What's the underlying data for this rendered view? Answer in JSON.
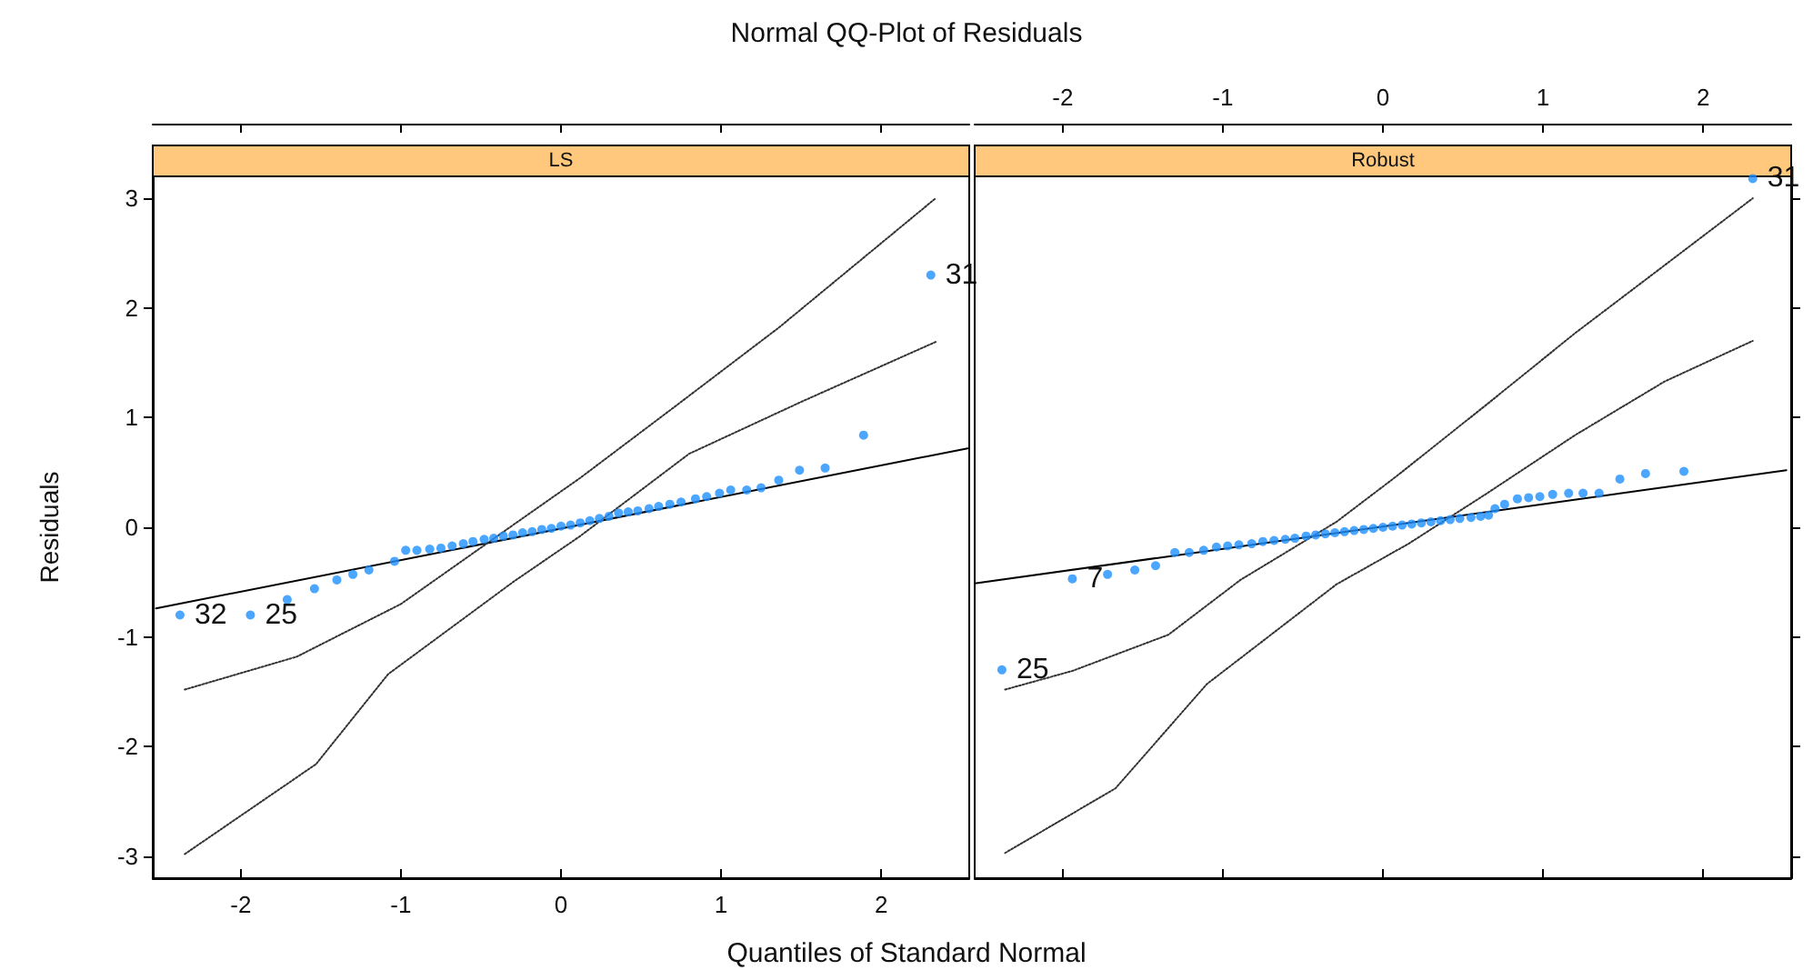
{
  "chart_data": [
    {
      "type": "scatter",
      "title": "Normal QQ-Plot of Residuals",
      "subtitle": "LS",
      "xlabel": "Quantiles of Standard Normal",
      "ylabel": "Residuals",
      "xlim": [
        -2.55,
        2.55
      ],
      "xticks": [
        -2,
        -1,
        0,
        1,
        2
      ],
      "ylim": [
        -3.2,
        3.2
      ],
      "yticks": [
        -3,
        -2,
        -1,
        0,
        1,
        2,
        3
      ],
      "marker": "circle",
      "series": [
        {
          "color": "#1e90ff",
          "x": [
            -2.38,
            -1.94,
            -1.71,
            -1.54,
            -1.4,
            -1.3,
            -1.2,
            -1.04,
            -0.97,
            -0.9,
            -0.82,
            -0.75,
            -0.68,
            -0.61,
            -0.55,
            -0.48,
            -0.42,
            -0.36,
            -0.3,
            -0.24,
            -0.18,
            -0.12,
            -0.06,
            0,
            0.06,
            0.12,
            0.18,
            0.24,
            0.3,
            0.36,
            0.42,
            0.48,
            0.55,
            0.61,
            0.68,
            0.75,
            0.84,
            0.91,
            0.99,
            1.06,
            1.16,
            1.25,
            1.36,
            1.49,
            1.65,
            1.89,
            2.31
          ],
          "values": [
            -0.8,
            -0.8,
            -0.66,
            -0.56,
            -0.48,
            -0.43,
            -0.39,
            -0.31,
            -0.21,
            -0.21,
            -0.2,
            -0.19,
            -0.17,
            -0.15,
            -0.13,
            -0.11,
            -0.1,
            -0.08,
            -0.07,
            -0.05,
            -0.04,
            -0.02,
            -0.01,
            0.01,
            0.02,
            0.04,
            0.06,
            0.08,
            0.1,
            0.13,
            0.14,
            0.15,
            0.17,
            0.19,
            0.21,
            0.23,
            0.26,
            0.28,
            0.31,
            0.34,
            0.34,
            0.36,
            0.43,
            0.52,
            0.54,
            0.84,
            2.3
          ]
        },
        {
          "type": "line",
          "marker": "none",
          "color": "#000000",
          "x": [
            -2.53,
            2.54
          ],
          "values": [
            -0.74,
            0.72
          ]
        },
        {
          "type": "line",
          "marker": "none",
          "line_style": "dotted",
          "color": "#333333",
          "x": [
            -2.35,
            -1.65,
            -1,
            -0.3,
            0.12,
            0.72,
            1.36,
            2.34
          ],
          "values": [
            -1.48,
            -1.18,
            -0.7,
            0.02,
            0.45,
            1.11,
            1.82,
            3
          ]
        },
        {
          "type": "line",
          "marker": "none",
          "line_style": "dotted",
          "color": "#333333",
          "x": [
            -2.35,
            -1.53,
            -1.08,
            -0.3,
            0.12,
            0.8,
            1.51,
            2.34
          ],
          "values": [
            -2.98,
            -2.16,
            -1.34,
            -0.5,
            -0.08,
            0.67,
            1.15,
            1.69
          ]
        }
      ],
      "annotations": [
        {
          "text": "32",
          "x": -2.38,
          "y": -0.8
        },
        {
          "text": "25",
          "x": -1.94,
          "y": -0.8
        },
        {
          "text": "31",
          "x": 2.31,
          "y": 2.3
        }
      ]
    },
    {
      "type": "scatter",
      "subtitle": "Robust",
      "xlim": [
        -2.55,
        2.55
      ],
      "xticks": [
        -2,
        -1,
        0,
        1,
        2
      ],
      "ylim": [
        -3.2,
        3.2
      ],
      "yticks": [
        -3,
        -2,
        -1,
        0,
        1,
        2,
        3
      ],
      "tick_labels": "x",
      "marker": "circle",
      "series": [
        {
          "color": "#1e90ff",
          "x": [
            -2.38,
            -1.94,
            -1.72,
            -1.55,
            -1.42,
            -1.3,
            -1.21,
            -1.12,
            -1.04,
            -0.97,
            -0.9,
            -0.82,
            -0.75,
            -0.68,
            -0.61,
            -0.55,
            -0.48,
            -0.42,
            -0.36,
            -0.3,
            -0.24,
            -0.18,
            -0.12,
            -0.06,
            0,
            0.06,
            0.12,
            0.18,
            0.24,
            0.3,
            0.36,
            0.42,
            0.48,
            0.55,
            0.61,
            0.66,
            0.7,
            0.76,
            0.84,
            0.91,
            0.98,
            1.06,
            1.16,
            1.25,
            1.35,
            1.48,
            1.64,
            1.88,
            2.31
          ],
          "values": [
            -1.3,
            -0.47,
            -0.43,
            -0.39,
            -0.35,
            -0.23,
            -0.23,
            -0.21,
            -0.18,
            -0.17,
            -0.16,
            -0.15,
            -0.13,
            -0.12,
            -0.11,
            -0.1,
            -0.08,
            -0.07,
            -0.06,
            -0.05,
            -0.04,
            -0.03,
            -0.02,
            -0.01,
            0,
            0.01,
            0.02,
            0.03,
            0.04,
            0.05,
            0.06,
            0.07,
            0.08,
            0.09,
            0.1,
            0.11,
            0.17,
            0.21,
            0.26,
            0.27,
            0.28,
            0.3,
            0.31,
            0.31,
            0.31,
            0.44,
            0.49,
            0.51,
            3.18
          ]
        },
        {
          "type": "line",
          "marker": "none",
          "color": "#000000",
          "x": [
            -2.54,
            2.52
          ],
          "values": [
            -0.51,
            0.52
          ]
        },
        {
          "type": "line",
          "marker": "none",
          "line_style": "dotted",
          "color": "#333333",
          "x": [
            -2.36,
            -1.94,
            -1.34,
            -0.89,
            -0.29,
            0.08,
            0.64,
            1.2,
            1.76,
            2.31
          ],
          "values": [
            -1.48,
            -1.31,
            -0.98,
            -0.48,
            0.05,
            0.46,
            1.11,
            1.77,
            2.39,
            3
          ]
        },
        {
          "type": "line",
          "marker": "none",
          "line_style": "dotted",
          "color": "#333333",
          "x": [
            -2.36,
            -1.67,
            -1.1,
            -0.29,
            0.16,
            0.64,
            1.2,
            1.76,
            2.31
          ],
          "values": [
            -2.97,
            -2.38,
            -1.43,
            -0.52,
            -0.15,
            0.3,
            0.84,
            1.33,
            1.7
          ]
        }
      ],
      "annotations": [
        {
          "text": "25",
          "x": -2.38,
          "y": -1.3
        },
        {
          "text": "7",
          "x": -1.94,
          "y": -0.47
        },
        {
          "text": "31",
          "x": 2.31,
          "y": 3.18
        }
      ]
    }
  ]
}
